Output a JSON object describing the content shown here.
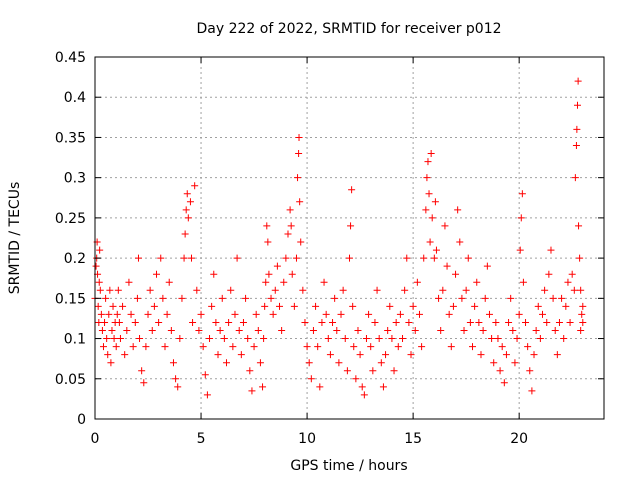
{
  "chart_data": {
    "type": "scatter",
    "title": "Day 222 of 2022, SRMTID for receiver p012",
    "xlabel": "GPS time / hours",
    "ylabel": "SRMTID / TECUs",
    "xlim": [
      0,
      24
    ],
    "ylim": [
      0,
      0.45
    ],
    "xticks": [
      0,
      5,
      10,
      15,
      20
    ],
    "xtick_labels": [
      "0",
      "5",
      "10",
      "15",
      "20"
    ],
    "yticks": [
      0,
      0.05,
      0.1,
      0.15,
      0.2,
      0.25,
      0.3,
      0.35,
      0.4,
      0.45
    ],
    "ytick_labels": [
      "0",
      "0.05",
      "0.1",
      "0.15",
      "0.2",
      "0.25",
      "0.3",
      "0.35",
      "0.4",
      "0.45"
    ],
    "grid": true,
    "marker": "+",
    "color": "#ff0000",
    "series": [
      {
        "name": "p012",
        "points": [
          [
            0.0,
            0.15
          ],
          [
            0.05,
            0.19
          ],
          [
            0.08,
            0.2
          ],
          [
            0.1,
            0.22
          ],
          [
            0.12,
            0.18
          ],
          [
            0.15,
            0.14
          ],
          [
            0.18,
            0.12
          ],
          [
            0.2,
            0.17
          ],
          [
            0.22,
            0.21
          ],
          [
            0.25,
            0.16
          ],
          [
            0.3,
            0.13
          ],
          [
            0.35,
            0.11
          ],
          [
            0.4,
            0.09
          ],
          [
            0.45,
            0.12
          ],
          [
            0.5,
            0.15
          ],
          [
            0.55,
            0.1
          ],
          [
            0.6,
            0.08
          ],
          [
            0.65,
            0.13
          ],
          [
            0.7,
            0.16
          ],
          [
            0.75,
            0.07
          ],
          [
            0.8,
            0.11
          ],
          [
            0.85,
            0.14
          ],
          [
            0.9,
            0.1
          ],
          [
            0.95,
            0.12
          ],
          [
            1.0,
            0.09
          ],
          [
            1.05,
            0.13
          ],
          [
            1.1,
            0.16
          ],
          [
            1.15,
            0.12
          ],
          [
            1.2,
            0.1
          ],
          [
            1.3,
            0.14
          ],
          [
            1.4,
            0.08
          ],
          [
            1.5,
            0.11
          ],
          [
            1.6,
            0.17
          ],
          [
            1.7,
            0.13
          ],
          [
            1.8,
            0.09
          ],
          [
            1.9,
            0.12
          ],
          [
            2.0,
            0.15
          ],
          [
            2.05,
            0.2
          ],
          [
            2.1,
            0.1
          ],
          [
            2.2,
            0.06
          ],
          [
            2.3,
            0.045
          ],
          [
            2.4,
            0.09
          ],
          [
            2.5,
            0.13
          ],
          [
            2.6,
            0.16
          ],
          [
            2.7,
            0.11
          ],
          [
            2.8,
            0.14
          ],
          [
            2.9,
            0.18
          ],
          [
            3.0,
            0.12
          ],
          [
            3.1,
            0.2
          ],
          [
            3.2,
            0.15
          ],
          [
            3.3,
            0.09
          ],
          [
            3.4,
            0.13
          ],
          [
            3.5,
            0.17
          ],
          [
            3.6,
            0.11
          ],
          [
            3.7,
            0.07
          ],
          [
            3.8,
            0.05
          ],
          [
            3.9,
            0.04
          ],
          [
            4.0,
            0.1
          ],
          [
            4.1,
            0.15
          ],
          [
            4.2,
            0.2
          ],
          [
            4.25,
            0.23
          ],
          [
            4.3,
            0.26
          ],
          [
            4.35,
            0.28
          ],
          [
            4.4,
            0.25
          ],
          [
            4.5,
            0.27
          ],
          [
            4.55,
            0.2
          ],
          [
            4.6,
            0.12
          ],
          [
            4.7,
            0.29
          ],
          [
            4.8,
            0.16
          ],
          [
            4.9,
            0.11
          ],
          [
            5.0,
            0.13
          ],
          [
            5.1,
            0.09
          ],
          [
            5.2,
            0.055
          ],
          [
            5.3,
            0.03
          ],
          [
            5.4,
            0.1
          ],
          [
            5.5,
            0.14
          ],
          [
            5.6,
            0.18
          ],
          [
            5.7,
            0.12
          ],
          [
            5.8,
            0.08
          ],
          [
            5.9,
            0.11
          ],
          [
            6.0,
            0.15
          ],
          [
            6.1,
            0.1
          ],
          [
            6.2,
            0.07
          ],
          [
            6.3,
            0.12
          ],
          [
            6.4,
            0.16
          ],
          [
            6.5,
            0.09
          ],
          [
            6.6,
            0.13
          ],
          [
            6.7,
            0.2
          ],
          [
            6.8,
            0.11
          ],
          [
            6.9,
            0.08
          ],
          [
            7.0,
            0.12
          ],
          [
            7.1,
            0.15
          ],
          [
            7.2,
            0.1
          ],
          [
            7.3,
            0.06
          ],
          [
            7.4,
            0.035
          ],
          [
            7.5,
            0.09
          ],
          [
            7.6,
            0.13
          ],
          [
            7.7,
            0.11
          ],
          [
            7.8,
            0.07
          ],
          [
            7.9,
            0.04
          ],
          [
            7.95,
            0.1
          ],
          [
            8.0,
            0.14
          ],
          [
            8.05,
            0.17
          ],
          [
            8.1,
            0.24
          ],
          [
            8.15,
            0.22
          ],
          [
            8.2,
            0.18
          ],
          [
            8.3,
            0.15
          ],
          [
            8.4,
            0.13
          ],
          [
            8.5,
            0.16
          ],
          [
            8.6,
            0.19
          ],
          [
            8.7,
            0.14
          ],
          [
            8.8,
            0.11
          ],
          [
            8.9,
            0.17
          ],
          [
            9.0,
            0.2
          ],
          [
            9.1,
            0.23
          ],
          [
            9.2,
            0.26
          ],
          [
            9.25,
            0.24
          ],
          [
            9.3,
            0.18
          ],
          [
            9.4,
            0.14
          ],
          [
            9.5,
            0.2
          ],
          [
            9.55,
            0.3
          ],
          [
            9.6,
            0.33
          ],
          [
            9.62,
            0.35
          ],
          [
            9.65,
            0.27
          ],
          [
            9.7,
            0.22
          ],
          [
            9.8,
            0.16
          ],
          [
            9.9,
            0.12
          ],
          [
            10.0,
            0.09
          ],
          [
            10.1,
            0.07
          ],
          [
            10.2,
            0.05
          ],
          [
            10.3,
            0.11
          ],
          [
            10.4,
            0.14
          ],
          [
            10.5,
            0.09
          ],
          [
            10.6,
            0.04
          ],
          [
            10.7,
            0.12
          ],
          [
            10.8,
            0.17
          ],
          [
            10.9,
            0.13
          ],
          [
            11.0,
            0.1
          ],
          [
            11.1,
            0.08
          ],
          [
            11.2,
            0.12
          ],
          [
            11.3,
            0.15
          ],
          [
            11.4,
            0.11
          ],
          [
            11.5,
            0.07
          ],
          [
            11.6,
            0.13
          ],
          [
            11.7,
            0.16
          ],
          [
            11.8,
            0.1
          ],
          [
            11.9,
            0.06
          ],
          [
            12.0,
            0.2
          ],
          [
            12.05,
            0.24
          ],
          [
            12.1,
            0.285
          ],
          [
            12.15,
            0.14
          ],
          [
            12.2,
            0.09
          ],
          [
            12.3,
            0.05
          ],
          [
            12.4,
            0.11
          ],
          [
            12.5,
            0.08
          ],
          [
            12.6,
            0.04
          ],
          [
            12.7,
            0.03
          ],
          [
            12.8,
            0.1
          ],
          [
            12.9,
            0.13
          ],
          [
            13.0,
            0.09
          ],
          [
            13.1,
            0.06
          ],
          [
            13.2,
            0.12
          ],
          [
            13.3,
            0.16
          ],
          [
            13.4,
            0.1
          ],
          [
            13.5,
            0.07
          ],
          [
            13.6,
            0.04
          ],
          [
            13.7,
            0.08
          ],
          [
            13.8,
            0.11
          ],
          [
            13.9,
            0.14
          ],
          [
            14.0,
            0.1
          ],
          [
            14.1,
            0.06
          ],
          [
            14.2,
            0.12
          ],
          [
            14.3,
            0.09
          ],
          [
            14.4,
            0.13
          ],
          [
            14.5,
            0.1
          ],
          [
            14.6,
            0.16
          ],
          [
            14.7,
            0.2
          ],
          [
            14.8,
            0.12
          ],
          [
            14.9,
            0.08
          ],
          [
            15.0,
            0.14
          ],
          [
            15.1,
            0.11
          ],
          [
            15.2,
            0.17
          ],
          [
            15.3,
            0.13
          ],
          [
            15.4,
            0.09
          ],
          [
            15.5,
            0.2
          ],
          [
            15.6,
            0.26
          ],
          [
            15.65,
            0.3
          ],
          [
            15.7,
            0.32
          ],
          [
            15.75,
            0.28
          ],
          [
            15.8,
            0.22
          ],
          [
            15.85,
            0.33
          ],
          [
            15.9,
            0.25
          ],
          [
            16.0,
            0.2
          ],
          [
            16.05,
            0.27
          ],
          [
            16.1,
            0.21
          ],
          [
            16.2,
            0.15
          ],
          [
            16.3,
            0.11
          ],
          [
            16.4,
            0.16
          ],
          [
            16.5,
            0.24
          ],
          [
            16.6,
            0.19
          ],
          [
            16.7,
            0.13
          ],
          [
            16.8,
            0.09
          ],
          [
            16.9,
            0.14
          ],
          [
            17.0,
            0.18
          ],
          [
            17.1,
            0.26
          ],
          [
            17.2,
            0.22
          ],
          [
            17.3,
            0.15
          ],
          [
            17.4,
            0.11
          ],
          [
            17.5,
            0.16
          ],
          [
            17.6,
            0.2
          ],
          [
            17.7,
            0.12
          ],
          [
            17.8,
            0.09
          ],
          [
            17.9,
            0.14
          ],
          [
            18.0,
            0.17
          ],
          [
            18.1,
            0.12
          ],
          [
            18.2,
            0.08
          ],
          [
            18.3,
            0.11
          ],
          [
            18.4,
            0.15
          ],
          [
            18.5,
            0.19
          ],
          [
            18.6,
            0.13
          ],
          [
            18.7,
            0.1
          ],
          [
            18.8,
            0.07
          ],
          [
            18.9,
            0.12
          ],
          [
            19.0,
            0.1
          ],
          [
            19.1,
            0.06
          ],
          [
            19.2,
            0.09
          ],
          [
            19.3,
            0.045
          ],
          [
            19.4,
            0.08
          ],
          [
            19.5,
            0.12
          ],
          [
            19.6,
            0.15
          ],
          [
            19.7,
            0.11
          ],
          [
            19.8,
            0.07
          ],
          [
            19.9,
            0.1
          ],
          [
            20.0,
            0.13
          ],
          [
            20.05,
            0.21
          ],
          [
            20.1,
            0.25
          ],
          [
            20.15,
            0.28
          ],
          [
            20.2,
            0.17
          ],
          [
            20.3,
            0.12
          ],
          [
            20.4,
            0.09
          ],
          [
            20.5,
            0.06
          ],
          [
            20.6,
            0.035
          ],
          [
            20.7,
            0.08
          ],
          [
            20.8,
            0.11
          ],
          [
            20.9,
            0.14
          ],
          [
            21.0,
            0.1
          ],
          [
            21.1,
            0.13
          ],
          [
            21.2,
            0.16
          ],
          [
            21.3,
            0.12
          ],
          [
            21.4,
            0.18
          ],
          [
            21.5,
            0.21
          ],
          [
            21.6,
            0.15
          ],
          [
            21.7,
            0.11
          ],
          [
            21.8,
            0.08
          ],
          [
            21.9,
            0.12
          ],
          [
            22.0,
            0.15
          ],
          [
            22.1,
            0.1
          ],
          [
            22.2,
            0.14
          ],
          [
            22.3,
            0.17
          ],
          [
            22.4,
            0.12
          ],
          [
            22.5,
            0.18
          ],
          [
            22.6,
            0.16
          ],
          [
            22.65,
            0.3
          ],
          [
            22.7,
            0.34
          ],
          [
            22.72,
            0.36
          ],
          [
            22.75,
            0.39
          ],
          [
            22.78,
            0.42
          ],
          [
            22.8,
            0.24
          ],
          [
            22.85,
            0.2
          ],
          [
            22.9,
            0.16
          ],
          [
            22.95,
            0.13
          ],
          [
            23.0,
            0.12
          ],
          [
            23.0,
            0.14
          ],
          [
            22.9,
            0.11
          ]
        ]
      }
    ]
  }
}
